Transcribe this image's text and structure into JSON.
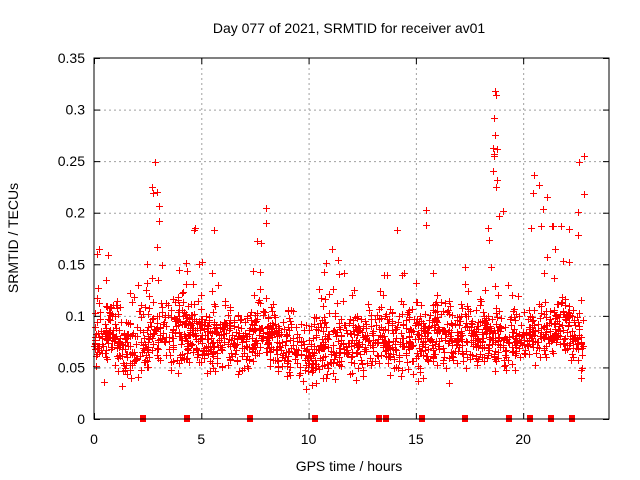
{
  "chart_data": {
    "type": "scatter",
    "title": "Day 077 of 2021, SRMTID for receiver av01",
    "xlabel": "GPS time / hours",
    "ylabel": "SRMTID / TECUs",
    "xlim": [
      0,
      24
    ],
    "ylim": [
      0,
      0.35
    ],
    "xticks": [
      0,
      5,
      10,
      15,
      20
    ],
    "xtick_labels": [
      "0",
      "5",
      "10",
      "15",
      "20"
    ],
    "yticks": [
      0,
      0.05,
      0.1,
      0.15,
      0.2,
      0.25,
      0.3,
      0.35
    ],
    "ytick_labels": [
      "0",
      "0.05",
      "0.1",
      "0.15",
      "0.2",
      "0.25",
      "0.3",
      "0.35"
    ],
    "grid": true,
    "marker": "plus",
    "color": "#ff0000",
    "markers_on_axis": {
      "description": "event markers along x-axis",
      "x": [
        2.28,
        4.33,
        7.27,
        10.29,
        13.27,
        13.6,
        15.28,
        17.28,
        19.33,
        20.31,
        21.29,
        22.26
      ]
    },
    "envelope": [
      {
        "hour": 0.0,
        "low": 0.04,
        "high": 0.18
      },
      {
        "hour": 0.5,
        "low": 0.03,
        "high": 0.19
      },
      {
        "hour": 1.0,
        "low": 0.03,
        "high": 0.12
      },
      {
        "hour": 1.5,
        "low": 0.02,
        "high": 0.11
      },
      {
        "hour": 2.0,
        "low": 0.02,
        "high": 0.18
      },
      {
        "hour": 2.5,
        "low": 0.03,
        "high": 0.16
      },
      {
        "hour": 2.9,
        "low": 0.05,
        "high": 0.25
      },
      {
        "hour": 3.5,
        "low": 0.04,
        "high": 0.12
      },
      {
        "hour": 4.0,
        "low": 0.03,
        "high": 0.15
      },
      {
        "hour": 4.7,
        "low": 0.04,
        "high": 0.185
      },
      {
        "hour": 5.5,
        "low": 0.03,
        "high": 0.18
      },
      {
        "hour": 6.0,
        "low": 0.04,
        "high": 0.12
      },
      {
        "hour": 6.5,
        "low": 0.03,
        "high": 0.125
      },
      {
        "hour": 7.0,
        "low": 0.03,
        "high": 0.12
      },
      {
        "hour": 7.9,
        "low": 0.04,
        "high": 0.205
      },
      {
        "hour": 8.5,
        "low": 0.03,
        "high": 0.12
      },
      {
        "hour": 9.0,
        "low": 0.03,
        "high": 0.11
      },
      {
        "hour": 9.6,
        "low": 0.02,
        "high": 0.105
      },
      {
        "hour": 10.0,
        "low": 0.02,
        "high": 0.09
      },
      {
        "hour": 10.5,
        "low": 0.015,
        "high": 0.14
      },
      {
        "hour": 11.0,
        "low": 0.02,
        "high": 0.165
      },
      {
        "hour": 11.5,
        "low": 0.02,
        "high": 0.15
      },
      {
        "hour": 12.0,
        "low": 0.03,
        "high": 0.13
      },
      {
        "hour": 12.5,
        "low": 0.03,
        "high": 0.12
      },
      {
        "hour": 13.0,
        "low": 0.03,
        "high": 0.11
      },
      {
        "hour": 13.5,
        "low": 0.03,
        "high": 0.145
      },
      {
        "hour": 14.1,
        "low": 0.02,
        "high": 0.185
      },
      {
        "hour": 14.6,
        "low": 0.02,
        "high": 0.13
      },
      {
        "hour": 15.0,
        "low": 0.03,
        "high": 0.14
      },
      {
        "hour": 15.5,
        "low": 0.03,
        "high": 0.205
      },
      {
        "hour": 16.0,
        "low": 0.04,
        "high": 0.13
      },
      {
        "hour": 16.5,
        "low": 0.03,
        "high": 0.135
      },
      {
        "hour": 17.0,
        "low": 0.03,
        "high": 0.12
      },
      {
        "hour": 17.5,
        "low": 0.04,
        "high": 0.165
      },
      {
        "hour": 18.0,
        "low": 0.04,
        "high": 0.13
      },
      {
        "hour": 18.7,
        "low": 0.04,
        "high": 0.318
      },
      {
        "hour": 19.3,
        "low": 0.03,
        "high": 0.14
      },
      {
        "hour": 19.9,
        "low": 0.03,
        "high": 0.12
      },
      {
        "hour": 20.5,
        "low": 0.04,
        "high": 0.237
      },
      {
        "hour": 21.1,
        "low": 0.04,
        "high": 0.215
      },
      {
        "hour": 21.7,
        "low": 0.05,
        "high": 0.2
      },
      {
        "hour": 22.2,
        "low": 0.04,
        "high": 0.195
      },
      {
        "hour": 22.8,
        "low": 0.03,
        "high": 0.255
      }
    ],
    "peaks": [
      {
        "hour": 2.85,
        "value": 0.249
      },
      {
        "hour": 2.7,
        "value": 0.225
      },
      {
        "hour": 2.75,
        "value": 0.219
      },
      {
        "hour": 2.95,
        "value": 0.22
      },
      {
        "hour": 4.7,
        "value": 0.185
      },
      {
        "hour": 5.6,
        "value": 0.183
      },
      {
        "hour": 8.0,
        "value": 0.205
      },
      {
        "hour": 8.0,
        "value": 0.19
      },
      {
        "hour": 11.1,
        "value": 0.165
      },
      {
        "hour": 14.1,
        "value": 0.183
      },
      {
        "hour": 15.45,
        "value": 0.203
      },
      {
        "hour": 18.7,
        "value": 0.318
      },
      {
        "hour": 18.72,
        "value": 0.314
      },
      {
        "hour": 18.65,
        "value": 0.292
      },
      {
        "hour": 18.7,
        "value": 0.275
      },
      {
        "hour": 18.6,
        "value": 0.263
      },
      {
        "hour": 18.65,
        "value": 0.255
      },
      {
        "hour": 18.6,
        "value": 0.24
      },
      {
        "hour": 18.8,
        "value": 0.232
      },
      {
        "hour": 18.75,
        "value": 0.225
      },
      {
        "hour": 20.5,
        "value": 0.237
      },
      {
        "hour": 21.1,
        "value": 0.215
      },
      {
        "hour": 22.6,
        "value": 0.249
      },
      {
        "hour": 22.85,
        "value": 0.255
      },
      {
        "hour": 22.85,
        "value": 0.218
      }
    ]
  }
}
